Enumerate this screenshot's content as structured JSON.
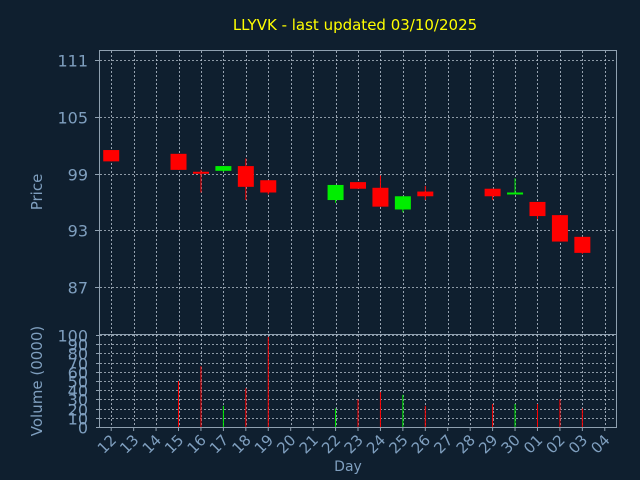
{
  "chart_data": [
    {
      "type": "candlestick",
      "title": "LLYVK - last updated 03/10/2025",
      "ylabel": "Price",
      "xlabel": "",
      "ylim": [
        82,
        112
      ],
      "yticks": [
        87,
        93,
        99,
        105,
        111
      ],
      "grid": true,
      "colors": {
        "up": "#00ee00",
        "down": "#ff0000"
      },
      "candles": [
        {
          "day": "12",
          "open": 101.5,
          "high": 101.5,
          "low": 100.3,
          "close": 100.3
        },
        {
          "day": "15",
          "open": 101.1,
          "high": 101.1,
          "low": 99.4,
          "close": 99.4
        },
        {
          "day": "16",
          "open": 99.2,
          "high": 99.4,
          "low": 97.0,
          "close": 99.0
        },
        {
          "day": "17",
          "open": 99.3,
          "high": 99.8,
          "low": 99.2,
          "close": 99.8
        },
        {
          "day": "18",
          "open": 99.8,
          "high": 100.6,
          "low": 96.2,
          "close": 97.6
        },
        {
          "day": "19",
          "open": 98.3,
          "high": 98.3,
          "low": 96.8,
          "close": 97.0
        },
        {
          "day": "22",
          "open": 96.2,
          "high": 97.8,
          "low": 95.9,
          "close": 97.8
        },
        {
          "day": "23",
          "open": 98.1,
          "high": 98.1,
          "low": 97.4,
          "close": 97.4
        },
        {
          "day": "24",
          "open": 97.5,
          "high": 98.8,
          "low": 95.5,
          "close": 95.5
        },
        {
          "day": "25",
          "open": 95.2,
          "high": 96.6,
          "low": 94.9,
          "close": 96.6
        },
        {
          "day": "26",
          "open": 97.1,
          "high": 97.7,
          "low": 96.2,
          "close": 96.6
        },
        {
          "day": "29",
          "open": 97.4,
          "high": 97.4,
          "low": 96.2,
          "close": 96.6
        },
        {
          "day": "30",
          "open": 96.9,
          "high": 98.5,
          "low": 96.9,
          "close": 97.0
        },
        {
          "day": "01",
          "open": 96.0,
          "high": 96.0,
          "low": 94.2,
          "close": 94.5
        },
        {
          "day": "02",
          "open": 94.6,
          "high": 94.6,
          "low": 91.8,
          "close": 91.8
        },
        {
          "day": "03",
          "open": 92.3,
          "high": 92.3,
          "low": 90.5,
          "close": 90.6
        }
      ]
    },
    {
      "type": "bar",
      "ylabel": "Volume (0000)",
      "xlabel": "Day",
      "ylim": [
        0,
        100
      ],
      "yticks": [
        0,
        10,
        20,
        30,
        40,
        50,
        60,
        70,
        80,
        90,
        100
      ],
      "categories": [
        "12",
        "13",
        "14",
        "15",
        "16",
        "17",
        "18",
        "19",
        "20",
        "21",
        "22",
        "23",
        "24",
        "25",
        "26",
        "27",
        "28",
        "29",
        "30",
        "01",
        "02",
        "03",
        "04"
      ],
      "volumes": [
        {
          "day": "15",
          "value": 50,
          "dir": "down"
        },
        {
          "day": "16",
          "value": 66,
          "dir": "down"
        },
        {
          "day": "17",
          "value": 23,
          "dir": "up"
        },
        {
          "day": "18",
          "value": 42,
          "dir": "down"
        },
        {
          "day": "19",
          "value": 98,
          "dir": "down"
        },
        {
          "day": "22",
          "value": 20,
          "dir": "up"
        },
        {
          "day": "23",
          "value": 30,
          "dir": "down"
        },
        {
          "day": "24",
          "value": 38,
          "dir": "down"
        },
        {
          "day": "25",
          "value": 35,
          "dir": "up"
        },
        {
          "day": "26",
          "value": 23,
          "dir": "down"
        },
        {
          "day": "29",
          "value": 25,
          "dir": "down"
        },
        {
          "day": "30",
          "value": 25,
          "dir": "up"
        },
        {
          "day": "01",
          "value": 25,
          "dir": "down"
        },
        {
          "day": "02",
          "value": 30,
          "dir": "down"
        },
        {
          "day": "03",
          "value": 20,
          "dir": "down"
        }
      ]
    }
  ],
  "colors": {
    "background": "#0f1f2f",
    "frame": "#8fa0b0",
    "grid": "#b8c4d0",
    "title": "#ffff00",
    "label": "#7f9fbf",
    "up": "#00ee00",
    "down": "#ff0000"
  }
}
